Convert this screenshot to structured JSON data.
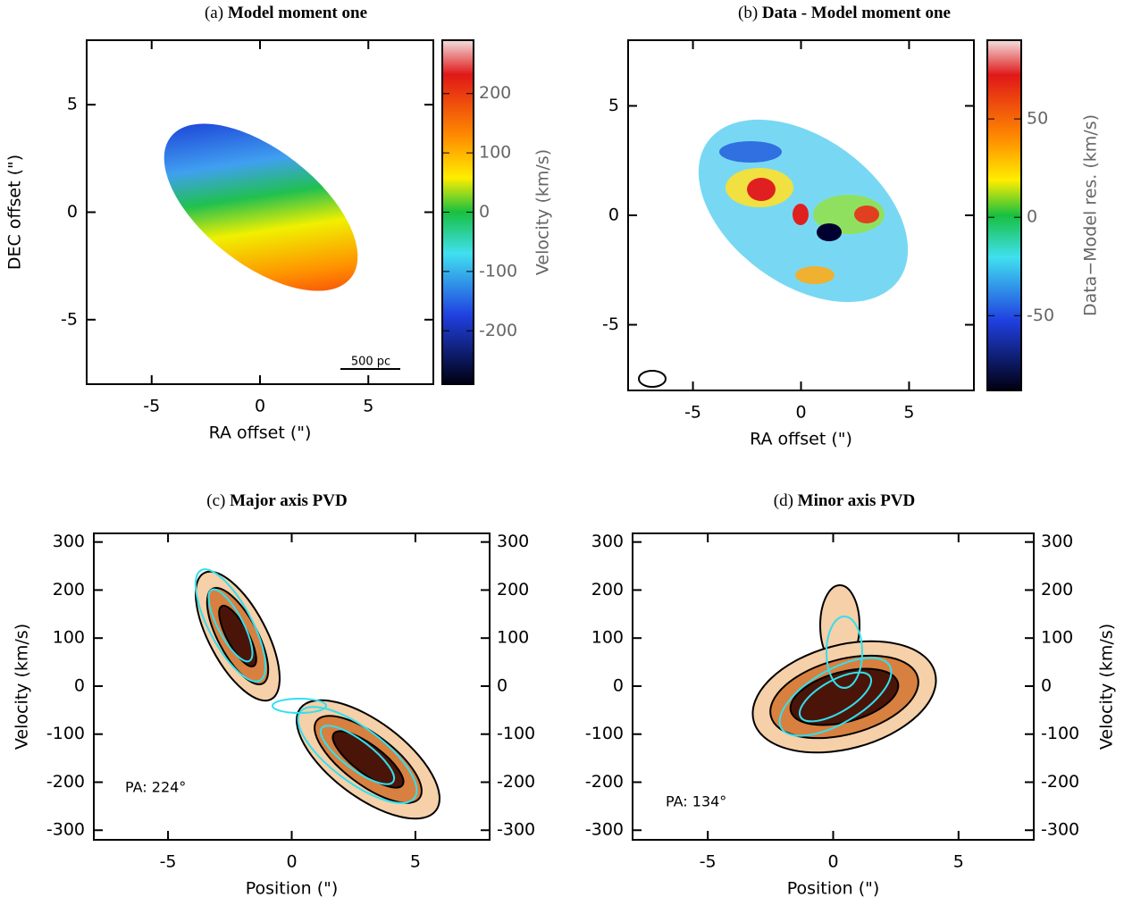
{
  "chart_data": [
    {
      "type": "heatmap",
      "panel": "(a)",
      "title": "Model moment one",
      "xlabel": "RA offset (\")",
      "ylabel": "DEC offset (\")",
      "xlim": [
        -8,
        8
      ],
      "xticks": [
        -5,
        0,
        5
      ],
      "ylim": [
        -8,
        8
      ],
      "yticks": [
        -5,
        0,
        5
      ],
      "clim": [
        -290,
        290
      ],
      "cticks": [
        -200,
        -100,
        0,
        100,
        200
      ],
      "clabel": "Velocity (km/s)",
      "scalebar_label": "500 pc"
    },
    {
      "type": "heatmap",
      "panel": "(b)",
      "title": "Data - Model moment one",
      "xlabel": "RA offset (\")",
      "xlim": [
        -8,
        8
      ],
      "xticks": [
        -5,
        0,
        5
      ],
      "ylim": [
        -8,
        8
      ],
      "yticks": [
        -5,
        0,
        5
      ],
      "clim": [
        -88,
        90
      ],
      "cticks": [
        -50,
        0,
        50
      ],
      "clabel": "Data−Model res. (km/s)"
    },
    {
      "type": "contour",
      "panel": "(c)",
      "title": "Major axis PVD",
      "xlabel": "Position (\")",
      "ylabel": "Velocity (km/s)",
      "xlim": [
        -8,
        8
      ],
      "xticks": [
        -5,
        0,
        5
      ],
      "ylim": [
        -320,
        318
      ],
      "yticks": [
        -300,
        -200,
        -100,
        0,
        100,
        200,
        300
      ],
      "y_right_labels": true,
      "annotation": "PA: 224°"
    },
    {
      "type": "contour",
      "panel": "(d)",
      "title": "Minor axis PVD",
      "xlabel": "Position (\")",
      "ylabel": "Velocity (km/s)",
      "xlim": [
        -8,
        8
      ],
      "xticks": [
        -5,
        0,
        5
      ],
      "ylim": [
        -320,
        318
      ],
      "yticks": [
        -300,
        -200,
        -100,
        0,
        100,
        200,
        300
      ],
      "y_right_labels": true,
      "annotation": "PA: 134°"
    }
  ]
}
